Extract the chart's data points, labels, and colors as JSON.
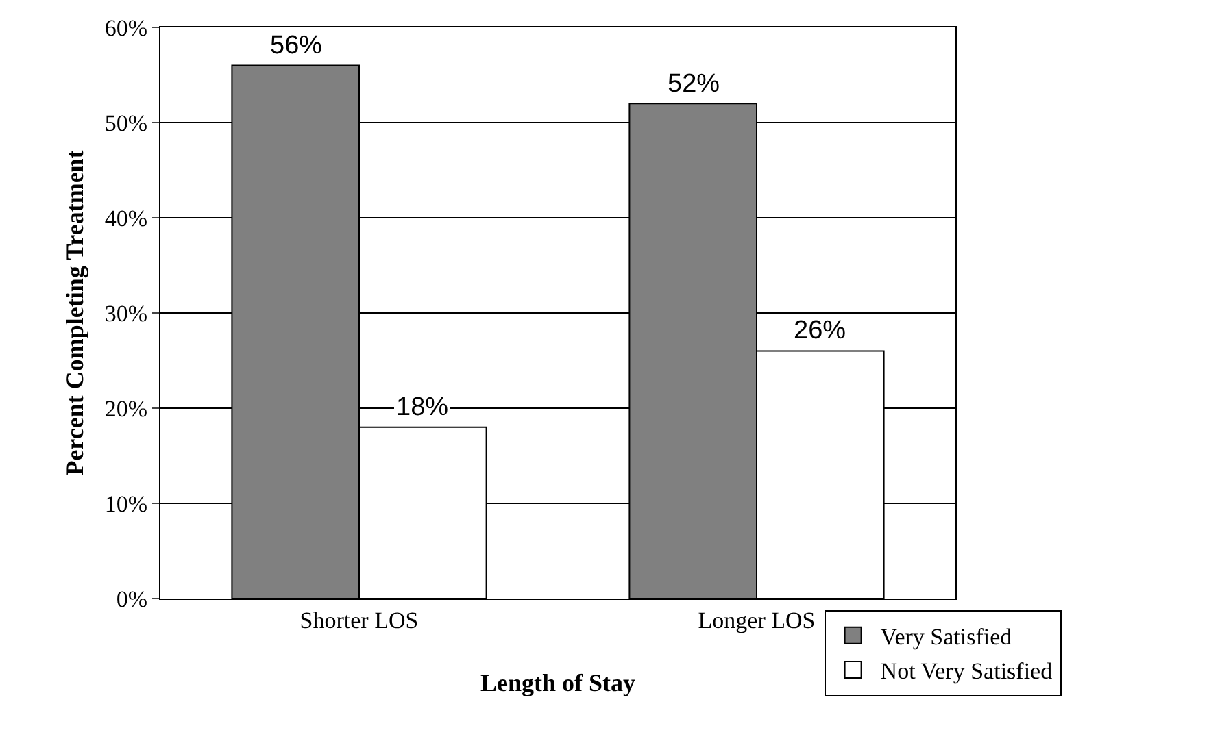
{
  "chart_data": {
    "type": "bar",
    "xlabel": "Length of Stay",
    "ylabel": "Percent Completing Treatment",
    "categories": [
      "Shorter LOS",
      "Longer LOS"
    ],
    "series": [
      {
        "name": "Very Satisfied",
        "color": "#808080",
        "values": [
          56,
          52
        ],
        "value_labels": [
          "56%",
          "52%"
        ]
      },
      {
        "name": "Not Very Satisfied",
        "color": "#ffffff",
        "values": [
          18,
          26
        ],
        "value_labels": [
          "18%",
          "26%"
        ]
      }
    ],
    "ylim": [
      0,
      60
    ],
    "yticks": [
      {
        "value": 0,
        "label": "0%"
      },
      {
        "value": 10,
        "label": "10%"
      },
      {
        "value": 20,
        "label": "20%"
      },
      {
        "value": 30,
        "label": "30%"
      },
      {
        "value": 40,
        "label": "40%"
      },
      {
        "value": 50,
        "label": "50%"
      },
      {
        "value": 60,
        "label": "60%"
      }
    ],
    "grid": "y",
    "legend": "bottom right"
  }
}
